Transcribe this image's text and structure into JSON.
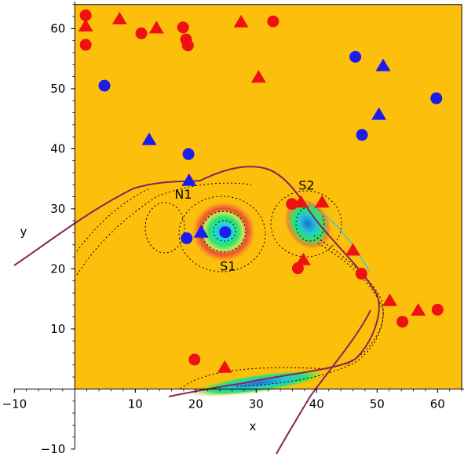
{
  "chart_data": {
    "type": "scatter",
    "title": "",
    "xlabel": "x",
    "ylabel": "y",
    "xlim": [
      -10,
      65
    ],
    "ylim": [
      -10,
      65
    ],
    "xticks": [
      -10,
      10,
      20,
      30,
      40,
      50,
      60
    ],
    "yticks": [
      -10,
      10,
      20,
      30,
      40,
      50,
      60
    ],
    "grid": false,
    "legend": "none",
    "background_region": {
      "x": [
        0,
        64
      ],
      "y": [
        0,
        64
      ],
      "color": "#fcc00c"
    },
    "annotations": [
      {
        "text": "N1",
        "x": 16.5,
        "y": 32.5
      },
      {
        "text": "S1",
        "x": 24.0,
        "y": 20.5
      },
      {
        "text": "S2",
        "x": 37.0,
        "y": 34.0
      }
    ],
    "series": [
      {
        "marker": "circle",
        "color": "#ee1111",
        "points": [
          [
            1.8,
            62.2
          ],
          [
            1.8,
            57.3
          ],
          [
            11.0,
            59.2
          ],
          [
            17.9,
            60.2
          ],
          [
            18.4,
            58.2
          ],
          [
            18.7,
            57.2
          ],
          [
            32.8,
            61.2
          ],
          [
            35.9,
            30.8
          ],
          [
            36.9,
            20.1
          ],
          [
            47.4,
            19.2
          ],
          [
            54.2,
            11.2
          ],
          [
            60.0,
            13.2
          ],
          [
            19.8,
            4.9
          ]
        ]
      },
      {
        "marker": "triangle",
        "color": "#ee1111",
        "points": [
          [
            1.8,
            60.3
          ],
          [
            7.4,
            61.5
          ],
          [
            13.5,
            60.0
          ],
          [
            27.5,
            61.0
          ],
          [
            30.4,
            51.8
          ],
          [
            37.4,
            31.0
          ],
          [
            40.9,
            31.0
          ],
          [
            37.8,
            21.4
          ],
          [
            46.0,
            23.0
          ],
          [
            52.1,
            14.6
          ],
          [
            56.8,
            13.0
          ],
          [
            24.8,
            3.5
          ]
        ]
      },
      {
        "marker": "circle",
        "color": "#1c1cee",
        "points": [
          [
            4.9,
            50.5
          ],
          [
            46.4,
            55.3
          ],
          [
            59.8,
            48.4
          ],
          [
            47.5,
            42.3
          ],
          [
            18.8,
            39.1
          ],
          [
            18.5,
            25.1
          ],
          [
            24.9,
            26.1
          ]
        ]
      },
      {
        "marker": "triangle",
        "color": "#1c1cee",
        "points": [
          [
            12.3,
            41.4
          ],
          [
            51.0,
            53.7
          ],
          [
            50.3,
            45.6
          ],
          [
            18.9,
            34.6
          ],
          [
            20.9,
            26.0
          ]
        ]
      }
    ]
  }
}
